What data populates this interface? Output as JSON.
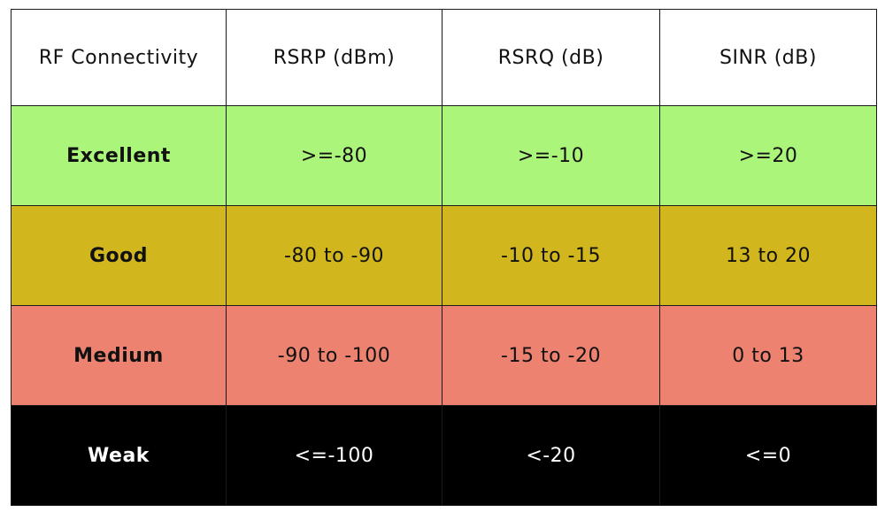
{
  "table": {
    "headers": [
      "RF Connectivity",
      "RSRP (dBm)",
      "RSRQ (dB)",
      "SINR (dB)"
    ],
    "rows": [
      {
        "label": "Excellent",
        "rsrp": ">=-80",
        "rsrq": ">=-10",
        "sinr": ">=20",
        "bg": "#aaf57a",
        "fg": "#111111"
      },
      {
        "label": "Good",
        "rsrp": "-80 to -90",
        "rsrq": "-10 to -15",
        "sinr": "13 to 20",
        "bg": "#d1b61e",
        "fg": "#111111"
      },
      {
        "label": "Medium",
        "rsrp": "-90 to -100",
        "rsrq": "-15 to -20",
        "sinr": "0 to 13",
        "bg": "#ee8270",
        "fg": "#111111"
      },
      {
        "label": "Weak",
        "rsrp": "<=-100",
        "rsrq": "<-20",
        "sinr": "<=0",
        "bg": "#000000",
        "fg": "#ffffff"
      }
    ]
  }
}
